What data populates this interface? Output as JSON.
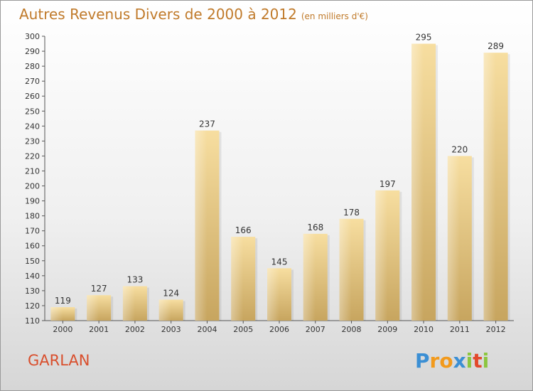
{
  "title": {
    "main": "Autres Revenus Divers de 2000 à 2012",
    "sub": "(en milliers d'€)"
  },
  "commune": "GARLAN",
  "logo": {
    "letters": [
      "P",
      "r",
      "o",
      "x",
      "i",
      "t",
      "i"
    ],
    "colors": [
      "#3b8fd4",
      "#f29a1c",
      "#f29a1c",
      "#3b8fd4",
      "#8cc63f",
      "#e2492c",
      "#8cc63f"
    ]
  },
  "colors": {
    "bar_light": "#f7dea0",
    "bar_dark": "#c7a55f",
    "axis": "#555555",
    "grid": "#d9d9d9",
    "title": "#c07a2a",
    "commune": "#d94f2d"
  },
  "chart_data": {
    "type": "bar",
    "title": "Autres Revenus Divers de 2000 à 2012",
    "subtitle": "(en milliers d'€)",
    "xlabel": "",
    "ylabel": "",
    "categories": [
      "2000",
      "2001",
      "2002",
      "2003",
      "2004",
      "2005",
      "2006",
      "2007",
      "2008",
      "2009",
      "2010",
      "2011",
      "2012"
    ],
    "values": [
      119,
      127,
      133,
      124,
      237,
      166,
      145,
      168,
      178,
      197,
      295,
      220,
      289
    ],
    "ylim": [
      110,
      300
    ],
    "ytick_step": 10,
    "grid": false,
    "data_labels": true
  }
}
